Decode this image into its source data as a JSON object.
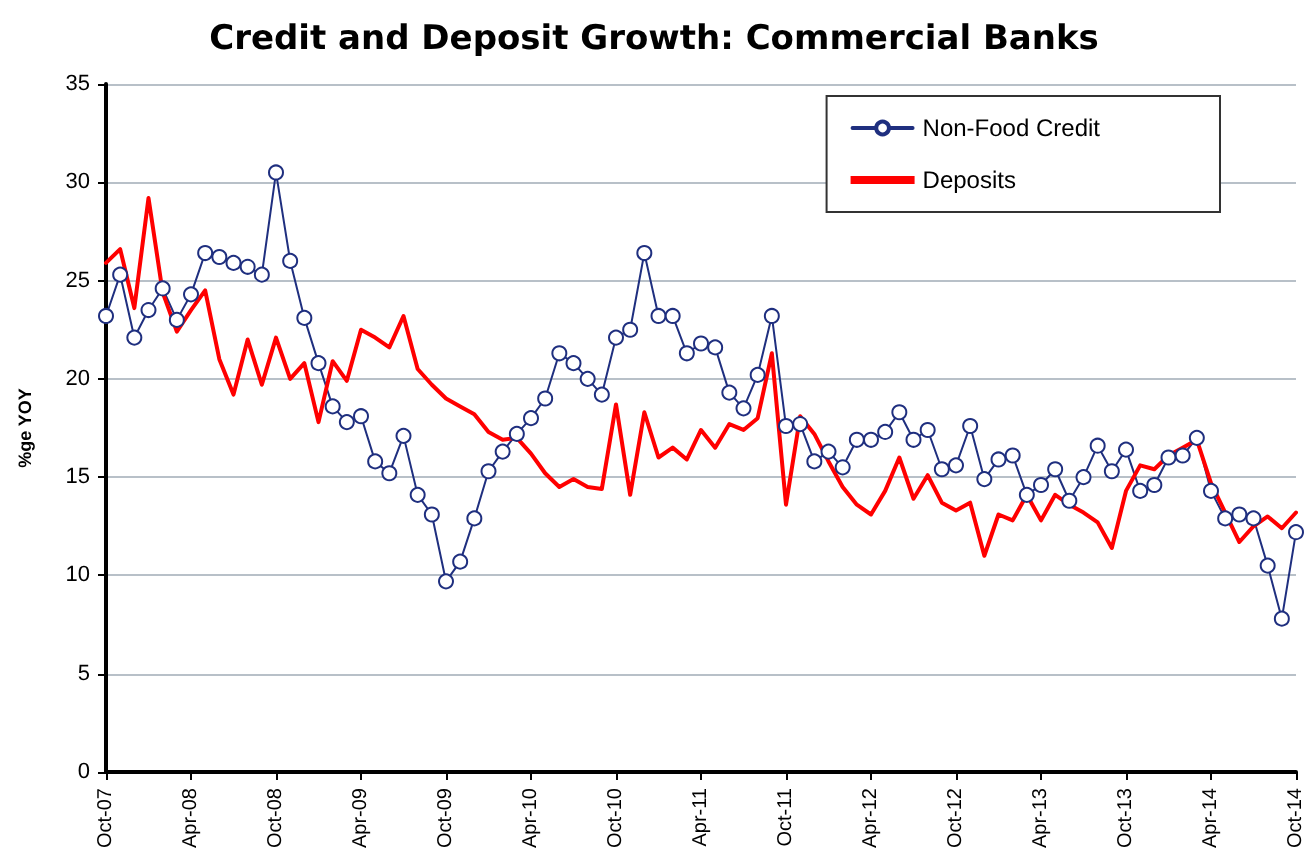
{
  "chart_data": {
    "type": "line",
    "title": "Credit and Deposit Growth: Commercial Banks",
    "ylabel": "%ge YOY",
    "categories": [
      "Oct-07",
      null,
      null,
      null,
      null,
      null,
      "Apr-08",
      null,
      null,
      null,
      null,
      null,
      "Oct-08",
      null,
      null,
      null,
      null,
      null,
      "Apr-09",
      null,
      null,
      null,
      null,
      null,
      "Oct-09",
      null,
      null,
      null,
      null,
      null,
      "Apr-10",
      null,
      null,
      null,
      null,
      null,
      "Oct-10",
      null,
      null,
      null,
      null,
      null,
      "Apr-11",
      null,
      null,
      null,
      null,
      null,
      "Oct-11",
      null,
      null,
      null,
      null,
      null,
      "Apr-12",
      null,
      null,
      null,
      null,
      null,
      "Oct-12",
      null,
      null,
      null,
      null,
      null,
      "Apr-13",
      null,
      null,
      null,
      null,
      null,
      "Oct-13",
      null,
      null,
      null,
      null,
      null,
      "Apr-14",
      null,
      null,
      null,
      null,
      null,
      "Oct-14"
    ],
    "series": [
      {
        "name": "Non-Food Credit",
        "color": "#1f2f7f",
        "marker": "circle",
        "values": [
          23.2,
          25.3,
          22.1,
          23.5,
          24.6,
          23.0,
          24.3,
          26.4,
          26.2,
          25.9,
          25.7,
          25.3,
          30.5,
          26.0,
          23.1,
          20.8,
          18.6,
          17.8,
          18.1,
          15.8,
          15.2,
          17.1,
          14.1,
          13.1,
          9.7,
          10.7,
          12.9,
          15.3,
          16.3,
          17.2,
          18.0,
          19.0,
          21.3,
          20.8,
          20.0,
          19.2,
          22.1,
          22.5,
          26.4,
          23.2,
          23.2,
          21.3,
          21.8,
          21.6,
          19.3,
          18.5,
          20.2,
          23.2,
          17.6,
          17.7,
          15.8,
          16.3,
          15.5,
          16.9,
          16.9,
          17.3,
          18.3,
          16.9,
          17.4,
          15.4,
          15.6,
          17.6,
          14.9,
          15.9,
          16.1,
          14.1,
          14.6,
          15.4,
          13.8,
          15.0,
          16.6,
          15.3,
          16.4,
          14.3,
          14.6,
          16.0,
          16.1,
          17.0,
          14.3,
          12.9,
          13.1,
          12.9,
          10.5,
          7.8,
          12.2
        ]
      },
      {
        "name": "Deposits",
        "color": "#ff0000",
        "marker": "none",
        "values": [
          25.9,
          26.6,
          23.6,
          29.2,
          24.4,
          22.4,
          23.5,
          24.5,
          21.0,
          19.2,
          22.0,
          19.7,
          22.1,
          20.0,
          20.8,
          17.8,
          20.9,
          19.9,
          22.5,
          22.1,
          21.6,
          23.2,
          20.5,
          19.7,
          19.0,
          18.6,
          18.2,
          17.3,
          16.9,
          17.0,
          16.2,
          15.2,
          14.5,
          14.9,
          14.5,
          14.4,
          18.7,
          14.1,
          18.3,
          16.0,
          16.5,
          15.9,
          17.4,
          16.5,
          17.7,
          17.4,
          18.0,
          21.3,
          13.6,
          18.1,
          17.2,
          15.8,
          14.5,
          13.6,
          13.1,
          14.3,
          16.0,
          13.9,
          15.1,
          13.7,
          13.3,
          13.7,
          11.0,
          13.1,
          12.8,
          14.1,
          12.8,
          14.1,
          13.6,
          13.2,
          12.7,
          11.4,
          14.3,
          15.6,
          15.4,
          16.1,
          16.5,
          16.9,
          14.7,
          13.2,
          11.7,
          12.5,
          13.0,
          12.4,
          13.2
        ]
      }
    ],
    "ylim": [
      0,
      35
    ],
    "yticks": [
      0,
      5,
      10,
      15,
      20,
      25,
      30,
      35
    ],
    "grid": "y",
    "legend": "top right"
  }
}
